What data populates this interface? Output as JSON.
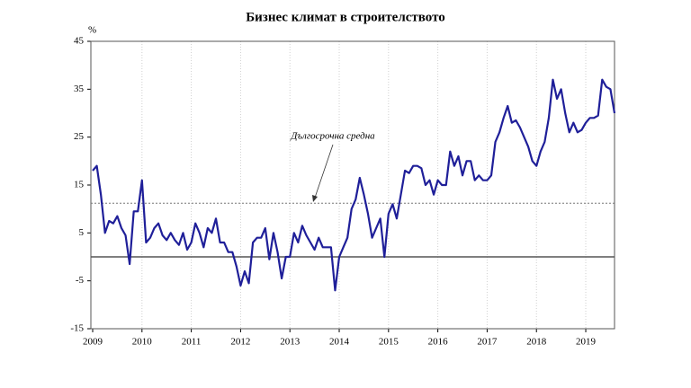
{
  "chart_data": {
    "type": "line",
    "title": "Бизнес климат в строителството",
    "y_unit": "%",
    "categories": [
      "2009",
      null,
      null,
      null,
      null,
      null,
      null,
      null,
      null,
      null,
      null,
      null,
      "2010",
      null,
      null,
      null,
      null,
      null,
      null,
      null,
      null,
      null,
      null,
      null,
      "2011",
      null,
      null,
      null,
      null,
      null,
      null,
      null,
      null,
      null,
      null,
      null,
      "2012",
      null,
      null,
      null,
      null,
      null,
      null,
      null,
      null,
      null,
      null,
      null,
      "2013",
      null,
      null,
      null,
      null,
      null,
      null,
      null,
      null,
      null,
      null,
      null,
      "2014",
      null,
      null,
      null,
      null,
      null,
      null,
      null,
      null,
      null,
      null,
      null,
      "2015",
      null,
      null,
      null,
      null,
      null,
      null,
      null,
      null,
      null,
      null,
      null,
      "2016",
      null,
      null,
      null,
      null,
      null,
      null,
      null,
      null,
      null,
      null,
      null,
      "2017",
      null,
      null,
      null,
      null,
      null,
      null,
      null,
      null,
      null,
      null,
      null,
      "2018",
      null,
      null,
      null,
      null,
      null,
      null,
      null,
      null,
      null,
      null,
      null,
      "2019",
      null,
      null,
      null,
      null,
      null,
      null,
      null
    ],
    "series": [
      {
        "color": "#1f1f99",
        "values": [
          18,
          19,
          13,
          5,
          7.5,
          7,
          8.5,
          6,
          4.5,
          -1.5,
          9.5,
          9.5,
          16,
          3,
          4,
          6,
          7,
          4.5,
          3.5,
          5,
          3.5,
          2.5,
          5,
          1.5,
          3,
          7,
          5,
          2,
          6,
          5,
          8,
          3,
          3,
          1,
          1,
          -2,
          -6,
          -3,
          -5.5,
          3,
          4,
          4,
          6,
          -0.5,
          5,
          1,
          -4.5,
          0,
          0,
          5,
          3,
          6.5,
          4.5,
          3,
          1.5,
          4,
          2,
          2,
          2,
          -7,
          0,
          2,
          4,
          10,
          12,
          16.5,
          13,
          9,
          4,
          6,
          8,
          0,
          9,
          11,
          8,
          13,
          18,
          17.5,
          19,
          19,
          18.5,
          15,
          16,
          13,
          16,
          15,
          15,
          22,
          19,
          21,
          17,
          20,
          20,
          16,
          17,
          16,
          16,
          17,
          24,
          26,
          29,
          31.5,
          28,
          28.5,
          27,
          25,
          23,
          20,
          19,
          22,
          24,
          29,
          37,
          33,
          35,
          30,
          26,
          28,
          26,
          26.5,
          28,
          29,
          29,
          29.5,
          37,
          35.5,
          35,
          30
        ]
      }
    ],
    "reference_line": {
      "value": 11.2,
      "label": "Дългосрочна средна",
      "color": "#777777"
    },
    "zero_line": true,
    "ylim": [
      -15,
      45
    ],
    "yticks": [
      -15,
      -5,
      5,
      15,
      25,
      35,
      45
    ],
    "grid": true
  }
}
